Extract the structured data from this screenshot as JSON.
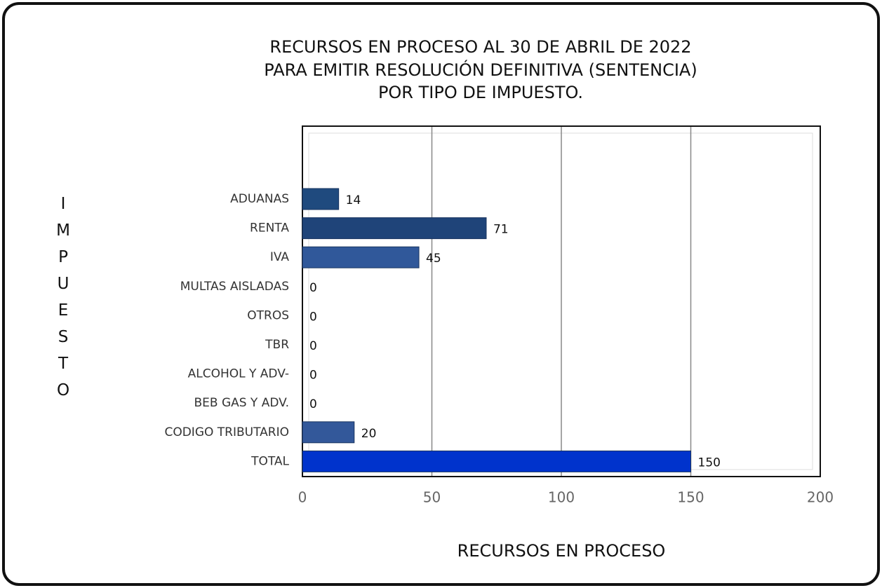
{
  "chart_data": {
    "type": "hbar",
    "title_lines": [
      "RECURSOS EN PROCESO AL 30 DE ABRIL DE 2022",
      "PARA EMITIR RESOLUCIÓN DEFINITIVA (SENTENCIA)",
      "POR TIPO DE IMPUESTO."
    ],
    "y_label": "IMPUESTO",
    "x_label": "RECURSOS EN PROCESO",
    "categories": [
      "ADUANAS",
      "RENTA",
      "IVA",
      "MULTAS AISLADAS",
      "OTROS",
      "TBR",
      "ALCOHOL Y ADV-",
      "BEB GAS Y ADV.",
      "CODIGO TRIBUTARIO",
      "TOTAL"
    ],
    "values": [
      14,
      71,
      45,
      0,
      0,
      0,
      0,
      0,
      20,
      150
    ],
    "colors": [
      "#1f4a7e",
      "#1f4479",
      "#30589a",
      "#30589a",
      "#30589a",
      "#30589a",
      "#30589a",
      "#30589a",
      "#33589a",
      "#0033cc"
    ],
    "xlim": [
      0,
      200
    ],
    "xticks": [
      0,
      50,
      100,
      150,
      200
    ],
    "grid": true
  }
}
